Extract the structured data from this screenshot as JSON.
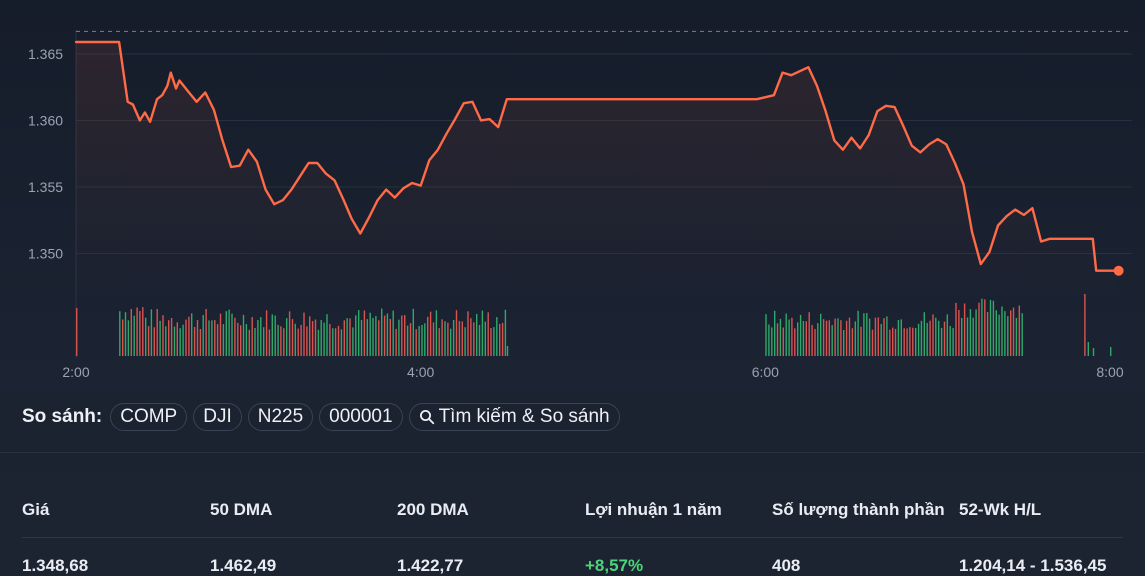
{
  "chart_data": {
    "type": "line",
    "x_ticks": [
      "2:00",
      "4:00",
      "6:00",
      "8:00"
    ],
    "y_ticks": [
      "1.365",
      "1.360",
      "1.355",
      "1.350"
    ],
    "ylim": [
      1.3465,
      1.3668
    ],
    "prev_close": 1.3667,
    "grid": true,
    "colors": {
      "line": "#ff6a47",
      "volume_up": "#2fa86a",
      "volume_down": "#d9534f",
      "prev_close": "#9aa3b2"
    },
    "series": [
      {
        "values": [
          [
            2.0,
            1.3659
          ],
          [
            2.25,
            1.3659
          ],
          [
            2.3,
            1.3614
          ],
          [
            2.33,
            1.3612
          ],
          [
            2.37,
            1.36
          ],
          [
            2.4,
            1.3606
          ],
          [
            2.43,
            1.3599
          ],
          [
            2.47,
            1.3616
          ],
          [
            2.5,
            1.3619
          ],
          [
            2.53,
            1.3626
          ],
          [
            2.55,
            1.3636
          ],
          [
            2.58,
            1.3624
          ],
          [
            2.6,
            1.363
          ],
          [
            2.65,
            1.3622
          ],
          [
            2.7,
            1.3614
          ],
          [
            2.75,
            1.3621
          ],
          [
            2.8,
            1.3608
          ],
          [
            2.85,
            1.3585
          ],
          [
            2.9,
            1.3565
          ],
          [
            2.95,
            1.3566
          ],
          [
            3.0,
            1.3578
          ],
          [
            3.05,
            1.3569
          ],
          [
            3.1,
            1.3548
          ],
          [
            3.15,
            1.3537
          ],
          [
            3.2,
            1.354
          ],
          [
            3.25,
            1.3548
          ],
          [
            3.3,
            1.3558
          ],
          [
            3.35,
            1.3568
          ],
          [
            3.4,
            1.3568
          ],
          [
            3.45,
            1.356
          ],
          [
            3.5,
            1.3555
          ],
          [
            3.55,
            1.3541
          ],
          [
            3.6,
            1.3526
          ],
          [
            3.65,
            1.3515
          ],
          [
            3.7,
            1.3527
          ],
          [
            3.75,
            1.354
          ],
          [
            3.8,
            1.3548
          ],
          [
            3.85,
            1.3542
          ],
          [
            3.9,
            1.3549
          ],
          [
            3.95,
            1.3553
          ],
          [
            4.0,
            1.3551
          ],
          [
            4.05,
            1.357
          ],
          [
            4.1,
            1.3578
          ],
          [
            4.15,
            1.359
          ],
          [
            4.2,
            1.3601
          ],
          [
            4.25,
            1.3613
          ],
          [
            4.3,
            1.3614
          ],
          [
            4.35,
            1.36
          ],
          [
            4.4,
            1.3601
          ],
          [
            4.45,
            1.3595
          ],
          [
            4.5,
            1.3616
          ],
          [
            5.95,
            1.3616
          ],
          [
            6.05,
            1.3619
          ],
          [
            6.1,
            1.3636
          ],
          [
            6.15,
            1.3634
          ],
          [
            6.2,
            1.3637
          ],
          [
            6.25,
            1.364
          ],
          [
            6.3,
            1.3626
          ],
          [
            6.35,
            1.3607
          ],
          [
            6.4,
            1.3585
          ],
          [
            6.45,
            1.3578
          ],
          [
            6.5,
            1.3587
          ],
          [
            6.55,
            1.3579
          ],
          [
            6.6,
            1.3589
          ],
          [
            6.65,
            1.3607
          ],
          [
            6.7,
            1.3611
          ],
          [
            6.75,
            1.361
          ],
          [
            6.8,
            1.3596
          ],
          [
            6.85,
            1.3581
          ],
          [
            6.9,
            1.3576
          ],
          [
            6.95,
            1.3582
          ],
          [
            7.0,
            1.3586
          ],
          [
            7.05,
            1.3582
          ],
          [
            7.1,
            1.3568
          ],
          [
            7.15,
            1.3552
          ],
          [
            7.2,
            1.3516
          ],
          [
            7.25,
            1.3492
          ],
          [
            7.3,
            1.3501
          ],
          [
            7.35,
            1.3521
          ],
          [
            7.4,
            1.3528
          ],
          [
            7.45,
            1.3533
          ],
          [
            7.5,
            1.3529
          ],
          [
            7.55,
            1.3534
          ],
          [
            7.6,
            1.3509
          ],
          [
            7.65,
            1.3511
          ],
          [
            7.9,
            1.3511
          ],
          [
            7.92,
            1.3487
          ],
          [
            8.05,
            1.3487
          ]
        ]
      }
    ]
  },
  "compare": {
    "label": "So sánh:",
    "chips": [
      "COMP",
      "DJI",
      "N225",
      "000001"
    ],
    "search_label": "Tìm kiếm & So sánh"
  },
  "stats": [
    {
      "label": "Giá",
      "value": "1.348,68"
    },
    {
      "label": "50 DMA",
      "value": "1.462,49"
    },
    {
      "label": "200 DMA",
      "value": "1.422,77"
    },
    {
      "label": "Lợi nhuận 1 năm",
      "value": "+8,57%",
      "positive": true
    },
    {
      "label": "Số lượng thành phần",
      "value": "408"
    },
    {
      "label": "52-Wk H/L",
      "value": "1.204,14 - 1.536,45"
    }
  ]
}
